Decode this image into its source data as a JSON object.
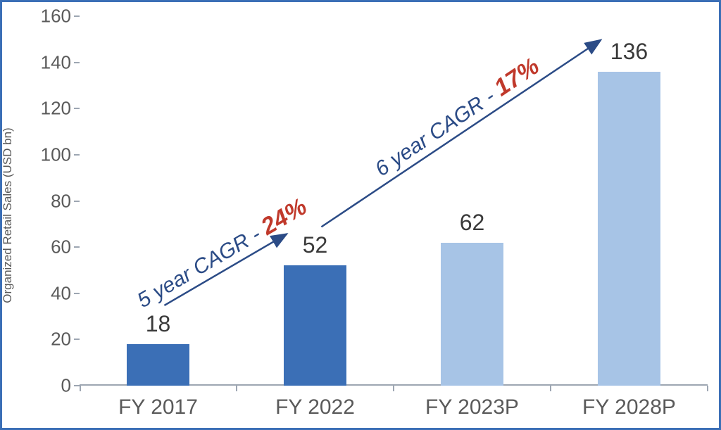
{
  "chart": {
    "type": "bar",
    "y_axis_title": "Organized Retail Sales (USD bn)",
    "y_axis_title_fontsize": 17,
    "y_axis_title_color": "#5a5a5a",
    "ylim": [
      0,
      160
    ],
    "ytick_step": 20,
    "yticks": [
      0,
      20,
      40,
      60,
      80,
      100,
      120,
      140,
      160
    ],
    "ytick_fontsize": 26,
    "ytick_color": "#5a5a5a",
    "categories": [
      "FY 2017",
      "FY 2022",
      "FY 2023P",
      "FY 2028P"
    ],
    "values": [
      18,
      52,
      62,
      136
    ],
    "value_labels": [
      "18",
      "52",
      "62",
      "136"
    ],
    "value_label_fontsize": 32,
    "value_label_color": "#3a3a3a",
    "bar_colors": [
      "#3b6fb6",
      "#3b6fb6",
      "#a7c4e6",
      "#a7c4e6"
    ],
    "xtick_fontsize": 30,
    "xtick_color": "#5a5a5a",
    "border_color": "#3b6fb6",
    "axis_line_color": "#9da6b2",
    "background_color": "#ffffff",
    "bar_width_ratio": 0.4,
    "annotations": [
      {
        "text_prefix": "5 year CAGR - ",
        "pct": "24%",
        "arrow_from_bar": 0,
        "arrow_to_bar": 1,
        "text_color": "#2b4b86",
        "pct_color": "#c0392b",
        "fontsize": 30,
        "pct_fontsize": 34,
        "arrow_color": "#2b4b86"
      },
      {
        "text_prefix": "6 year CAGR - ",
        "pct": "17%",
        "arrow_from_bar": 1,
        "arrow_to_bar": 3,
        "text_color": "#2b4b86",
        "pct_color": "#c0392b",
        "fontsize": 30,
        "pct_fontsize": 34,
        "arrow_color": "#2b4b86"
      }
    ]
  }
}
